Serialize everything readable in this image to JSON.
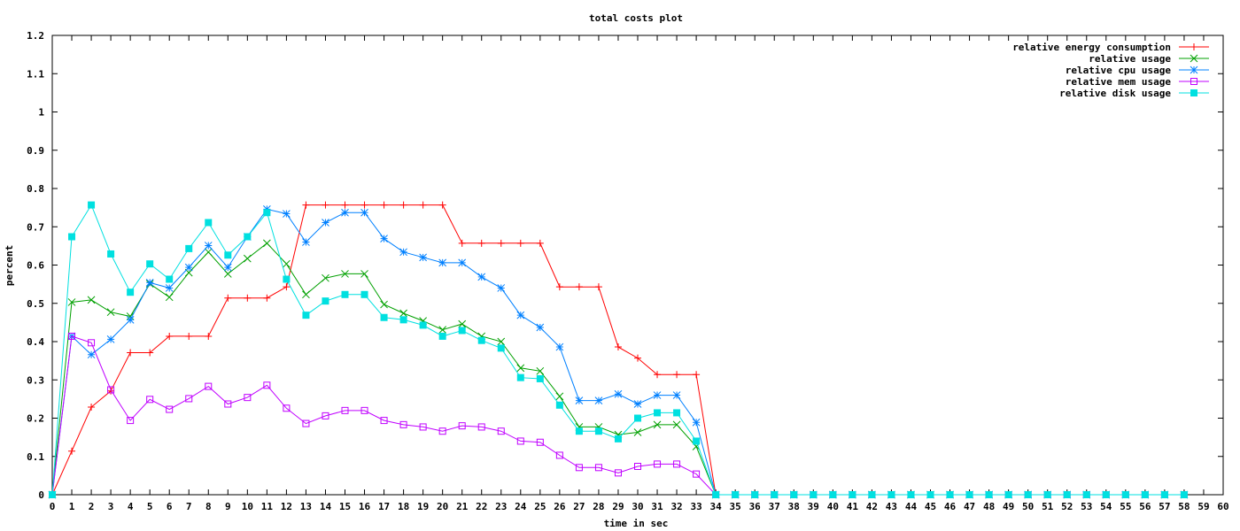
{
  "chart_data": {
    "type": "line",
    "title": "total costs plot",
    "xlabel": "time in sec",
    "ylabel": "percent",
    "xlim": [
      0,
      60
    ],
    "ylim": [
      0,
      1.2
    ],
    "x_ticks": [
      0,
      1,
      2,
      3,
      4,
      5,
      6,
      7,
      8,
      9,
      10,
      11,
      12,
      13,
      14,
      15,
      16,
      17,
      18,
      19,
      20,
      21,
      22,
      23,
      24,
      25,
      26,
      27,
      28,
      29,
      30,
      31,
      32,
      33,
      34,
      35,
      36,
      37,
      38,
      39,
      40,
      41,
      42,
      43,
      44,
      45,
      46,
      47,
      48,
      49,
      50,
      51,
      52,
      53,
      54,
      55,
      56,
      57,
      58,
      59,
      60
    ],
    "y_ticks": [
      "0",
      "0.1",
      "0.2",
      "0.3",
      "0.4",
      "0.5",
      "0.6",
      "0.7",
      "0.8",
      "0.9",
      "1",
      "1.1",
      "1.2"
    ],
    "grid": false,
    "legend_position": "top-right",
    "x": [
      0,
      1,
      2,
      3,
      4,
      5,
      6,
      7,
      8,
      9,
      10,
      11,
      12,
      13,
      14,
      15,
      16,
      17,
      18,
      19,
      20,
      21,
      22,
      23,
      24,
      25,
      26,
      27,
      28,
      29,
      30,
      31,
      32,
      33,
      34,
      35,
      36,
      37,
      38,
      39,
      40,
      41,
      42,
      43,
      44,
      45,
      46,
      47,
      48,
      49,
      50,
      51,
      52,
      53,
      54,
      55,
      56,
      57,
      58
    ],
    "series": [
      {
        "name": "relative energy consumption",
        "color": "#ff0000",
        "marker": "plus",
        "values": [
          0,
          0.114,
          0.229,
          0.271,
          0.371,
          0.371,
          0.414,
          0.414,
          0.414,
          0.514,
          0.514,
          0.514,
          0.543,
          0.757,
          0.757,
          0.757,
          0.757,
          0.757,
          0.757,
          0.757,
          0.757,
          0.657,
          0.657,
          0.657,
          0.657,
          0.657,
          0.543,
          0.543,
          0.543,
          0.386,
          0.357,
          0.314,
          0.314,
          0.314,
          0,
          0,
          0,
          0,
          0,
          0,
          0,
          0,
          0,
          0,
          0,
          0,
          0,
          0,
          0,
          0,
          0,
          0,
          0,
          0,
          0,
          0,
          0,
          0,
          0
        ]
      },
      {
        "name": "relative usage",
        "color": "#00a000",
        "marker": "cross",
        "values": [
          0,
          0.503,
          0.509,
          0.477,
          0.466,
          0.551,
          0.516,
          0.58,
          0.634,
          0.577,
          0.617,
          0.657,
          0.603,
          0.523,
          0.566,
          0.577,
          0.577,
          0.497,
          0.474,
          0.454,
          0.431,
          0.446,
          0.414,
          0.4,
          0.331,
          0.323,
          0.257,
          0.177,
          0.177,
          0.157,
          0.163,
          0.183,
          0.183,
          0.126,
          0,
          0,
          0,
          0,
          0,
          0,
          0,
          0,
          0,
          0,
          0,
          0,
          0,
          0,
          0,
          0,
          0,
          0,
          0,
          0,
          0,
          0,
          0,
          0,
          0
        ]
      },
      {
        "name": "relative cpu usage",
        "color": "#0080ff",
        "marker": "star",
        "values": [
          0,
          0.414,
          0.366,
          0.406,
          0.457,
          0.554,
          0.54,
          0.594,
          0.651,
          0.594,
          0.674,
          0.746,
          0.734,
          0.66,
          0.711,
          0.737,
          0.737,
          0.669,
          0.634,
          0.62,
          0.606,
          0.606,
          0.569,
          0.54,
          0.469,
          0.437,
          0.386,
          0.246,
          0.246,
          0.263,
          0.237,
          0.26,
          0.26,
          0.189,
          0,
          0,
          0,
          0,
          0,
          0,
          0,
          0,
          0,
          0,
          0,
          0,
          0,
          0,
          0,
          0,
          0,
          0,
          0,
          0,
          0,
          0,
          0,
          0,
          0
        ]
      },
      {
        "name": "relative mem usage",
        "color": "#c000ff",
        "marker": "box",
        "values": [
          0,
          0.414,
          0.397,
          0.274,
          0.194,
          0.249,
          0.223,
          0.251,
          0.283,
          0.237,
          0.254,
          0.286,
          0.226,
          0.186,
          0.206,
          0.22,
          0.22,
          0.194,
          0.183,
          0.177,
          0.166,
          0.18,
          0.177,
          0.166,
          0.14,
          0.137,
          0.103,
          0.071,
          0.071,
          0.057,
          0.074,
          0.08,
          0.08,
          0.054,
          0,
          0,
          0,
          0,
          0,
          0,
          0,
          0,
          0,
          0,
          0,
          0,
          0,
          0,
          0,
          0,
          0,
          0,
          0,
          0,
          0,
          0,
          0,
          0,
          0
        ]
      },
      {
        "name": "relative disk usage",
        "color": "#00e0e0",
        "marker": "filled-box",
        "values": [
          0,
          0.674,
          0.757,
          0.629,
          0.529,
          0.603,
          0.563,
          0.643,
          0.711,
          0.626,
          0.674,
          0.737,
          0.563,
          0.469,
          0.506,
          0.523,
          0.523,
          0.463,
          0.457,
          0.443,
          0.414,
          0.429,
          0.403,
          0.383,
          0.306,
          0.303,
          0.234,
          0.166,
          0.166,
          0.146,
          0.2,
          0.214,
          0.214,
          0.14,
          0,
          0,
          0,
          0,
          0,
          0,
          0,
          0,
          0,
          0,
          0,
          0,
          0,
          0,
          0,
          0,
          0,
          0,
          0,
          0,
          0,
          0,
          0,
          0,
          0
        ]
      }
    ]
  }
}
